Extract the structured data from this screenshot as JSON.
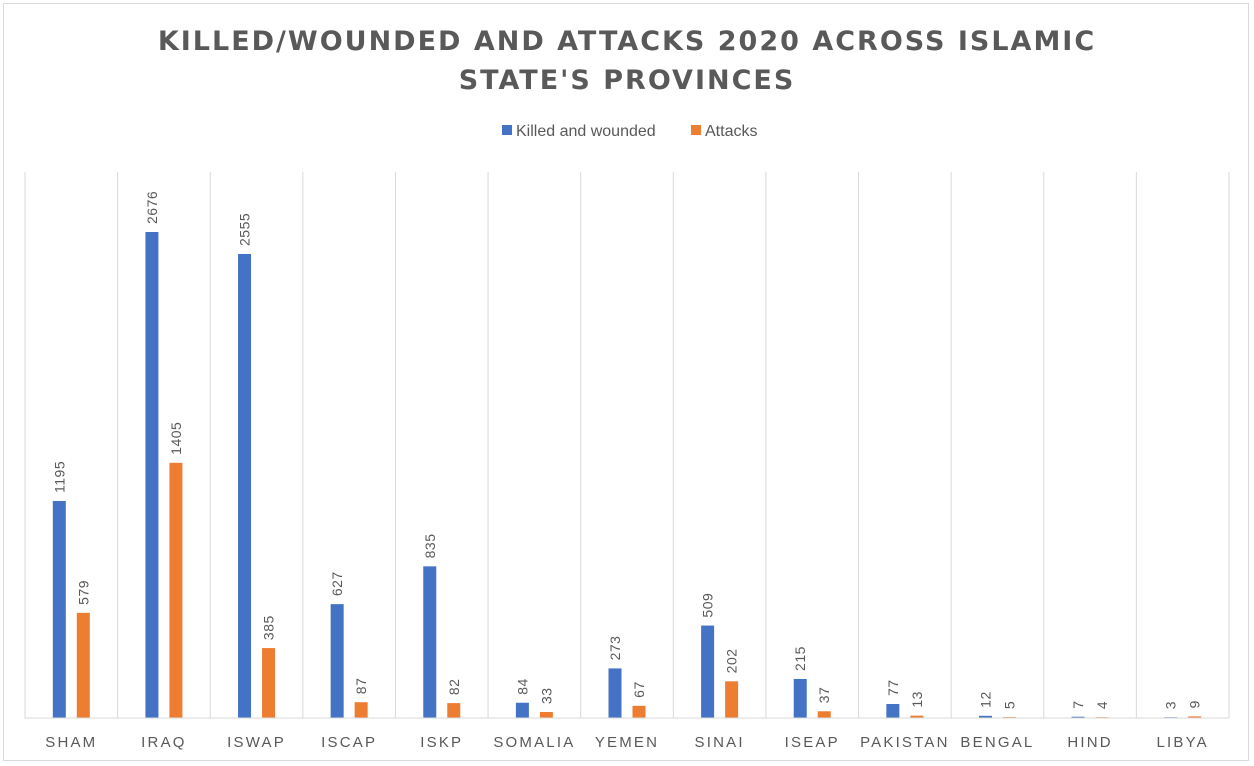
{
  "chart_data": {
    "type": "bar",
    "title_lines": [
      "KILLED/WOUNDED AND ATTACKS 2020 ACROSS ISLAMIC",
      "STATE'S PROVINCES"
    ],
    "categories": [
      "SHAM",
      "IRAQ",
      "ISWAP",
      "ISCAP",
      "ISKP",
      "SOMALIA",
      "YEMEN",
      "SINAI",
      "ISEAP",
      "PAKISTAN",
      "BENGAL",
      "HIND",
      "LIBYA"
    ],
    "series": [
      {
        "name": "Killed and wounded",
        "color": "#4472c4",
        "values": [
          1195,
          2676,
          2555,
          627,
          835,
          84,
          273,
          509,
          215,
          77,
          12,
          7,
          3
        ]
      },
      {
        "name": "Attacks",
        "color": "#ed7d31",
        "values": [
          579,
          1405,
          385,
          87,
          82,
          33,
          67,
          202,
          37,
          13,
          5,
          4,
          9
        ]
      }
    ],
    "ylim": [
      0,
      3000
    ],
    "legend_position": "top",
    "gridlines": "vertical-category-separators",
    "data_labels": true
  }
}
